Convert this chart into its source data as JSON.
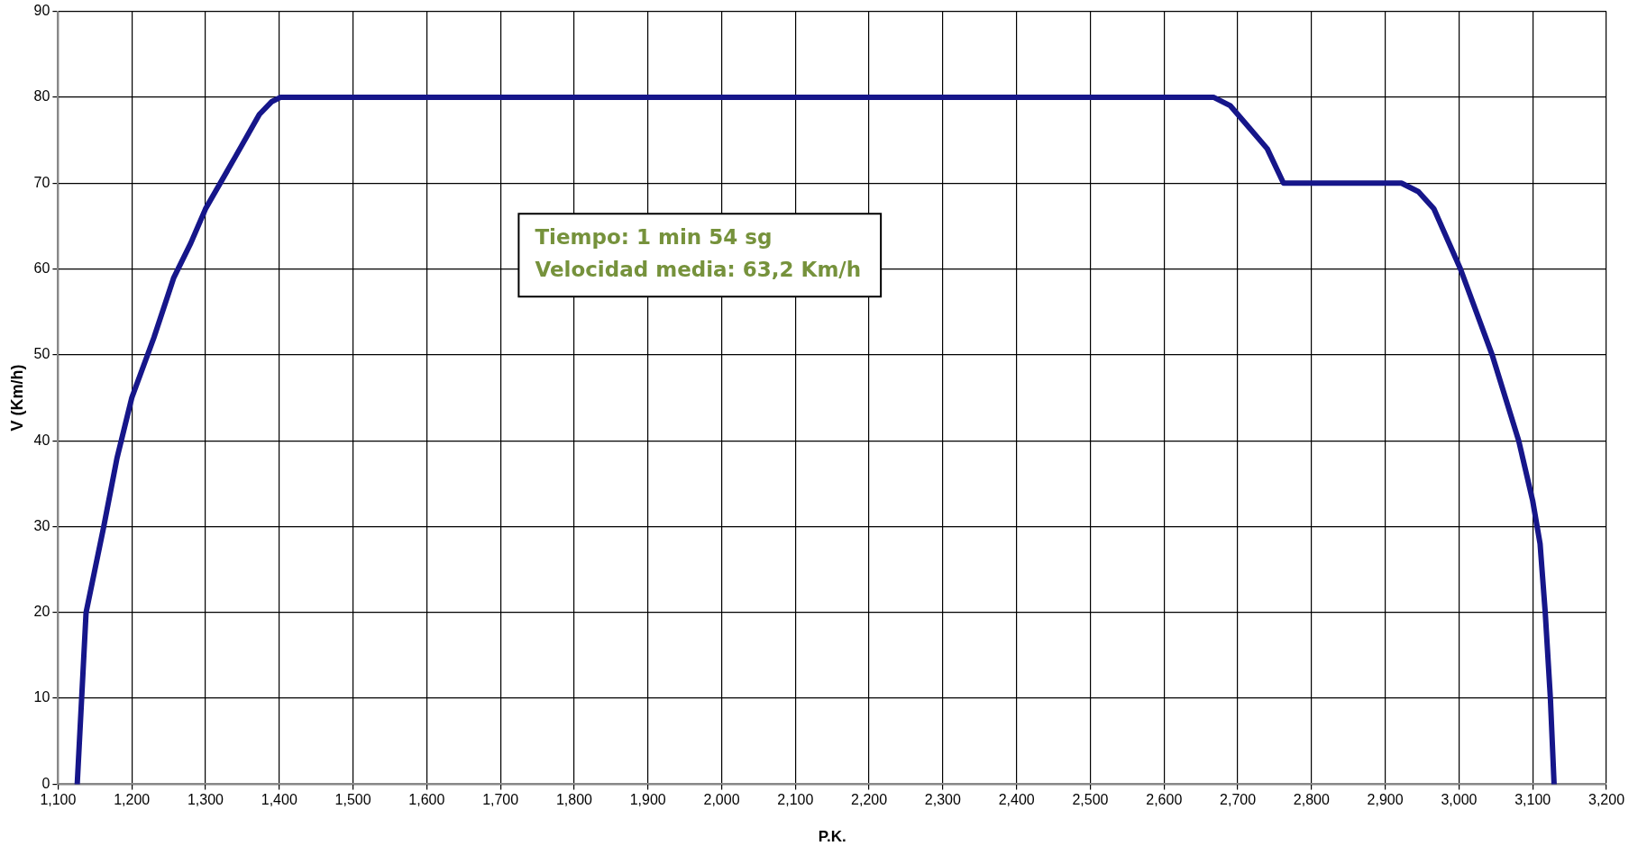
{
  "chart_data": {
    "type": "line",
    "xlabel": "P.K.",
    "ylabel": "V (Km/h)",
    "xlim": [
      1100,
      3200
    ],
    "ylim": [
      0,
      90
    ],
    "xticks": [
      {
        "value": 1100,
        "label": "1,100"
      },
      {
        "value": 1200,
        "label": "1,200"
      },
      {
        "value": 1300,
        "label": "1,300"
      },
      {
        "value": 1400,
        "label": "1,400"
      },
      {
        "value": 1500,
        "label": "1,500"
      },
      {
        "value": 1600,
        "label": "1,600"
      },
      {
        "value": 1700,
        "label": "1,700"
      },
      {
        "value": 1800,
        "label": "1,800"
      },
      {
        "value": 1900,
        "label": "1,900"
      },
      {
        "value": 2000,
        "label": "2,000"
      },
      {
        "value": 2100,
        "label": "2,100"
      },
      {
        "value": 2200,
        "label": "2,200"
      },
      {
        "value": 2300,
        "label": "2,300"
      },
      {
        "value": 2400,
        "label": "2,400"
      },
      {
        "value": 2500,
        "label": "2,500"
      },
      {
        "value": 2600,
        "label": "2,600"
      },
      {
        "value": 2700,
        "label": "2,700"
      },
      {
        "value": 2800,
        "label": "2,800"
      },
      {
        "value": 2900,
        "label": "2,900"
      },
      {
        "value": 3000,
        "label": "3,000"
      },
      {
        "value": 3100,
        "label": "3,100"
      },
      {
        "value": 3200,
        "label": "3,200"
      }
    ],
    "yticks": [
      0,
      10,
      20,
      30,
      40,
      50,
      60,
      70,
      80,
      90
    ],
    "grid": true,
    "legend": false,
    "marker": "none",
    "line_style": "solid",
    "annotations": [
      "Tiempo: 1 min 54 sg",
      "Velocidad media: 63,2 Km/h"
    ],
    "series": [
      {
        "color": "#16168a",
        "x": [
          1126,
          1132,
          1138,
          1150,
          1162,
          1180,
          1200,
          1230,
          1257,
          1280,
          1300,
          1340,
          1373,
          1390,
          1402,
          2667,
          2690,
          2710,
          2740,
          2762,
          2800,
          2922,
          2945,
          2966,
          3002,
          3045,
          3081,
          3100,
          3110,
          3117,
          3124,
          3129
        ],
        "values": [
          0,
          10,
          20,
          25,
          30,
          38,
          45,
          52,
          59,
          63,
          67,
          73,
          78,
          79.5,
          80,
          80,
          79,
          77,
          74,
          70,
          70,
          70,
          69,
          67,
          60,
          50,
          40,
          33,
          28,
          20,
          10,
          0
        ]
      }
    ]
  }
}
